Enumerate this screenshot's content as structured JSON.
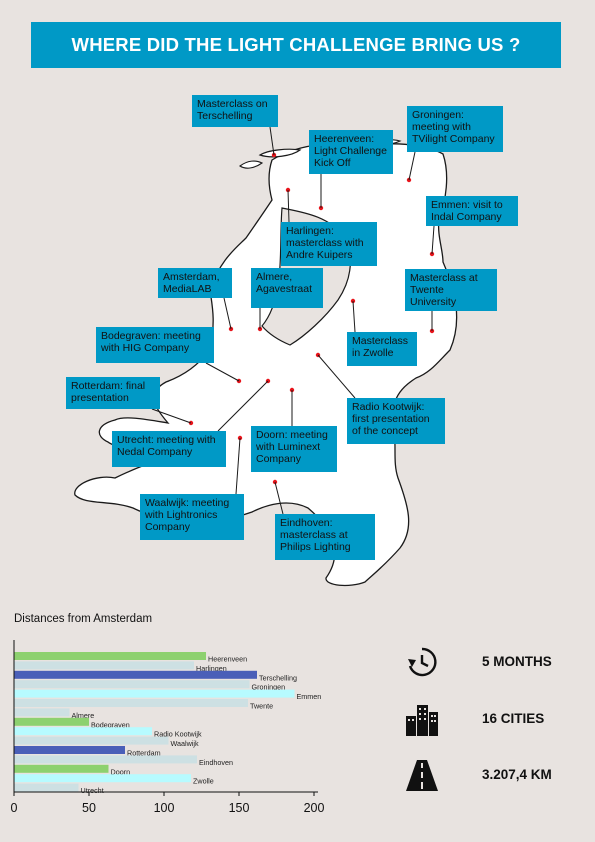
{
  "title": "WHERE DID THE LIGHT CHALLENGE BRING US ?",
  "labels": [
    {
      "id": "terschelling",
      "text": "Masterclass on Terschelling"
    },
    {
      "id": "heerenveen",
      "text": "Heerenveen: Light Challenge Kick Off"
    },
    {
      "id": "groningen",
      "text": "Groningen: meeting with TVilight Company"
    },
    {
      "id": "emmen",
      "text": "Emmen: visit to Indal Company"
    },
    {
      "id": "harlingen",
      "text": "Harlingen: masterclass with Andre Kuipers"
    },
    {
      "id": "twente",
      "text": "Masterclass at Twente University"
    },
    {
      "id": "amsterdam",
      "text": "Amsterdam, MediaLAB"
    },
    {
      "id": "almere",
      "text": "Almere, Agavestraat"
    },
    {
      "id": "zwolle",
      "text": "Masterclass in Zwolle"
    },
    {
      "id": "bodegraven",
      "text": "Bodegraven: meeting with HIG Company"
    },
    {
      "id": "rotterdam",
      "text": "Rotterdam: final presentation"
    },
    {
      "id": "kootwijk",
      "text": "Radio Kootwijk: first presentation of the concept"
    },
    {
      "id": "utrecht",
      "text": "Utrecht: meeting with Nedal Company"
    },
    {
      "id": "doorn",
      "text": "Doorn: meeting with Luminext Company"
    },
    {
      "id": "waalwijk",
      "text": "Waalwijk: meeting with Lightronics Company"
    },
    {
      "id": "eindhoven",
      "text": "Eindhoven: masterclass at Philips Lighting"
    }
  ],
  "colors": {
    "banner": "#0099c6",
    "label": "#0099c6",
    "dot": "#e8141b",
    "green": "#8dd16f",
    "blue": "#4a5fb8",
    "cyan": "#b7fbff",
    "grey": "#cde0e3"
  },
  "stats": [
    {
      "icon": "clock-history-icon",
      "text": "5 MONTHS"
    },
    {
      "icon": "city-buildings-icon",
      "text": "16 CITIES"
    },
    {
      "icon": "road-icon",
      "text": "3.207,4 KM"
    }
  ],
  "chart_data": {
    "type": "bar",
    "orientation": "horizontal",
    "title": "Distances from Amsterdam",
    "categories": [
      "Heerenveen",
      "Harlingen",
      "Terschelling",
      "Groningen",
      "Emmen",
      "Twente",
      "Almere",
      "Bodegraven",
      "Radio Kootwijk",
      "Waalwijk",
      "Rotterdam",
      "Eindhoven",
      "Doorn",
      "Zwolle",
      "Utrecht"
    ],
    "values": [
      128,
      120,
      162,
      157,
      187,
      156,
      37,
      50,
      92,
      103,
      74,
      122,
      63,
      118,
      43
    ],
    "bar_colors": [
      "green",
      "grey",
      "blue",
      "grey",
      "cyan",
      "grey",
      "grey",
      "green",
      "cyan",
      "grey",
      "blue",
      "grey",
      "green",
      "cyan",
      "grey"
    ],
    "xlim": [
      0,
      200
    ],
    "xticks": [
      0,
      50,
      100,
      150,
      200
    ],
    "grid": false
  }
}
